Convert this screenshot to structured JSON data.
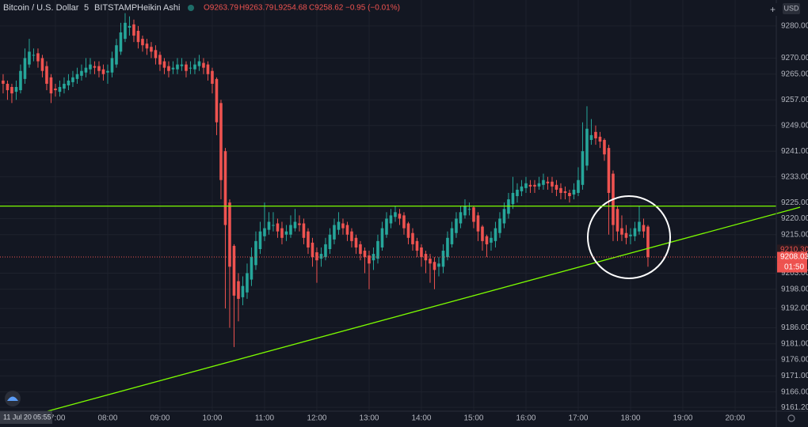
{
  "chart_data": {
    "type": "candlestick",
    "header": {
      "symbol": "Bitcoin / U.S. Dollar",
      "interval": "5",
      "exchange": "BITSTAMP",
      "style": "Heikin Ashi",
      "open": "O9263.79",
      "high": "H9263.79",
      "low": "L9254.68",
      "close": "C9258.62",
      "change": "−0.95 (−0.01%)"
    },
    "currency": "USD",
    "cursor_date": "11 Jul 20",
    "cursor_time": "05:55",
    "countdown": "01:50",
    "up_color": "#26a69a",
    "down_color": "#ef5350",
    "grid": true,
    "hline": 9223.9,
    "hline_color": "#7cfc00",
    "price_labels": [
      {
        "value": 9210.3,
        "label": "9210.30"
      },
      {
        "value": 9208.03,
        "label": "9208.03"
      }
    ],
    "xlim": [
      356.4,
      1247.3
    ],
    "xticks": [
      {
        "value": 420,
        "label": "07:00"
      },
      {
        "value": 480,
        "label": "08:00"
      },
      {
        "value": 540,
        "label": "09:00"
      },
      {
        "value": 600,
        "label": "10:00"
      },
      {
        "value": 660,
        "label": "11:00"
      },
      {
        "value": 720,
        "label": "12:00"
      },
      {
        "value": 780,
        "label": "13:00"
      },
      {
        "value": 840,
        "label": "14:00"
      },
      {
        "value": 900,
        "label": "15:00"
      },
      {
        "value": 960,
        "label": "16:00"
      },
      {
        "value": 1020,
        "label": "17:00"
      },
      {
        "value": 1080,
        "label": "18:00"
      },
      {
        "value": 1140,
        "label": "19:00"
      },
      {
        "value": 1200,
        "label": "20:00"
      }
    ],
    "ylim": [
      9160,
      9288.1
    ],
    "yticks": [
      {
        "value": 9280,
        "label": "9280.00"
      },
      {
        "value": 9270,
        "label": "9270.00"
      },
      {
        "value": 9265,
        "label": "9265.00"
      },
      {
        "value": 9257,
        "label": "9257.00"
      },
      {
        "value": 9249,
        "label": "9249.00"
      },
      {
        "value": 9241,
        "label": "9241.00"
      },
      {
        "value": 9233,
        "label": "9233.00"
      },
      {
        "value": 9225,
        "label": "9225.00"
      },
      {
        "value": 9220,
        "label": "9220.00"
      },
      {
        "value": 9215,
        "label": "9215.00"
      },
      {
        "value": 9203,
        "label": "9203.00"
      },
      {
        "value": 9198,
        "label": "9198.00"
      },
      {
        "value": 9192,
        "label": "9192.00"
      },
      {
        "value": 9186,
        "label": "9186.00"
      },
      {
        "value": 9181,
        "label": "9181.00"
      },
      {
        "value": 9176,
        "label": "9176.00"
      },
      {
        "value": 9171,
        "label": "9171.00"
      },
      {
        "value": 9166,
        "label": "9166.00"
      },
      {
        "value": 9161.2,
        "label": "9161.20"
      }
    ],
    "x": [
      360,
      365,
      370,
      375,
      380,
      385,
      390,
      395,
      400,
      405,
      410,
      415,
      420,
      425,
      430,
      435,
      440,
      445,
      450,
      455,
      460,
      465,
      470,
      475,
      480,
      485,
      490,
      495,
      500,
      505,
      510,
      515,
      520,
      525,
      530,
      535,
      540,
      545,
      550,
      555,
      560,
      565,
      570,
      575,
      580,
      585,
      590,
      595,
      600,
      605,
      610,
      615,
      620,
      625,
      630,
      635,
      640,
      645,
      650,
      655,
      660,
      665,
      670,
      675,
      680,
      685,
      690,
      695,
      700,
      705,
      710,
      715,
      720,
      725,
      730,
      735,
      740,
      745,
      750,
      755,
      760,
      765,
      770,
      775,
      780,
      785,
      790,
      795,
      800,
      805,
      810,
      815,
      820,
      825,
      830,
      835,
      840,
      845,
      850,
      855,
      860,
      865,
      870,
      875,
      880,
      885,
      890,
      895,
      900,
      905,
      910,
      915,
      920,
      925,
      930,
      935,
      940,
      945,
      950,
      955,
      960,
      965,
      970,
      975,
      980,
      985,
      990,
      995,
      1000,
      1005,
      1010,
      1015,
      1020,
      1025,
      1030,
      1035,
      1040,
      1045,
      1050,
      1055,
      1060,
      1065,
      1070,
      1075,
      1080,
      1085,
      1090,
      1095,
      1100
    ],
    "open": [
      9263,
      9262,
      9261,
      9259.5,
      9260,
      9263.5,
      9268,
      9271,
      9271.5,
      9270,
      9267.5,
      9264,
      9260.5,
      9259.5,
      9260.5,
      9261.5,
      9262.5,
      9263.5,
      9264.5,
      9265.5,
      9266.5,
      9267.5,
      9267.5,
      9266.5,
      9265.5,
      9265.5,
      9268,
      9272,
      9276,
      9279.5,
      9280.5,
      9278.5,
      9276,
      9274.5,
      9273.5,
      9272.5,
      9271,
      9269,
      9267.5,
      9266.5,
      9266.5,
      9267.5,
      9268,
      9267,
      9266.5,
      9267.5,
      9268.5,
      9268,
      9266,
      9263.5,
      9256,
      9241,
      9225,
      9211.5,
      9200.5,
      9195.5,
      9197,
      9201,
      9205.5,
      9210.5,
      9214.5,
      9216.5,
      9218,
      9218.5,
      9217,
      9215,
      9215,
      9217,
      9218.5,
      9218.5,
      9216,
      9212.5,
      9209.5,
      9207.5,
      9208,
      9210.5,
      9213.5,
      9216.5,
      9218.5,
      9218,
      9216,
      9214,
      9212,
      9210,
      9208.5,
      9207,
      9207.5,
      9211,
      9215,
      9218.5,
      9220.5,
      9221.5,
      9221,
      9218.5,
      9215.5,
      9213,
      9211,
      9209,
      9207.5,
      9206.5,
      9205,
      9205,
      9208,
      9212,
      9215.5,
      9218.5,
      9221,
      9223,
      9223.5,
      9221,
      9217.5,
      9214.5,
      9212.5,
      9213,
      9215.5,
      9218.5,
      9221.5,
      9224.5,
      9227,
      9228.5,
      9229.5,
      9230.5,
      9230.5,
      9230,
      9230.5,
      9231.5,
      9231.5,
      9230.5,
      9229.5,
      9228.5,
      9228,
      9227.5,
      9228,
      9230.5,
      9236.5,
      9244.5,
      9247,
      9245.5,
      9244.5,
      9242,
      9234,
      9223,
      9217,
      9215.5,
      9214.5,
      9214.5,
      9216,
      9218,
      9217.5
    ],
    "high": [
      9265,
      9263,
      9262,
      9263,
      9268,
      9273,
      9276,
      9273,
      9273,
      9271,
      9269,
      9265,
      9262,
      9263,
      9264,
      9265,
      9266,
      9267,
      9268,
      9270,
      9270,
      9269,
      9269,
      9268,
      9268,
      9272,
      9276,
      9281,
      9284,
      9283,
      9282,
      9280,
      9277,
      9276,
      9275,
      9274,
      9272,
      9270,
      9269,
      9269,
      9270,
      9270,
      9269,
      9269,
      9270,
      9271,
      9270,
      9269,
      9267,
      9264,
      9257,
      9242,
      9226,
      9212,
      9203,
      9202,
      9206,
      9211,
      9216,
      9219,
      9225,
      9222,
      9222,
      9220,
      9219,
      9218,
      9221,
      9223,
      9221,
      9220,
      9217,
      9214,
      9211,
      9211,
      9214,
      9217,
      9220,
      9222,
      9220,
      9219,
      9217,
      9215,
      9213,
      9211,
      9210,
      9211,
      9215,
      9219,
      9222,
      9223,
      9224,
      9223,
      9222,
      9219,
      9217,
      9214,
      9212,
      9210,
      9209,
      9208,
      9208,
      9212,
      9216,
      9219,
      9222,
      9224,
      9226,
      9225,
      9224,
      9222,
      9218,
      9215,
      9216,
      9219,
      9222,
      9225,
      9228,
      9233,
      9231,
      9232,
      9233,
      9232,
      9232,
      9233,
      9234,
      9233,
      9233,
      9232,
      9231,
      9230,
      9229,
      9231,
      9236,
      9250,
      9255,
      9251,
      9249,
      9247,
      9245,
      9243,
      9235,
      9224,
      9221,
      9218,
      9217,
      9219,
      9224,
      9220,
      9218
    ],
    "low": [
      9259,
      9257,
      9256,
      9257,
      9259,
      9262,
      9267,
      9269,
      9267,
      9264,
      9260,
      9256,
      9258,
      9258,
      9259,
      9260,
      9261,
      9262,
      9263,
      9264,
      9265,
      9265,
      9264,
      9263,
      9262,
      9264,
      9267,
      9271,
      9275,
      9277,
      9275,
      9273,
      9272,
      9271,
      9270,
      9268,
      9266,
      9265,
      9264,
      9265,
      9265,
      9266,
      9264,
      9265,
      9265,
      9266,
      9265,
      9263,
      9259,
      9246,
      9226,
      9192,
      9186,
      9180,
      9188,
      9193,
      9195,
      9199,
      9204,
      9209,
      9213,
      9215,
      9216,
      9214,
      9212,
      9213,
      9214,
      9216,
      9216,
      9212,
      9209,
      9205,
      9200,
      9205,
      9207,
      9209,
      9212,
      9215,
      9215,
      9213,
      9211,
      9209,
      9207,
      9203,
      9198,
      9204,
      9206,
      9210,
      9214,
      9217,
      9219,
      9218,
      9215,
      9212,
      9210,
      9208,
      9205,
      9203,
      9200,
      9198,
      9202,
      9203,
      9207,
      9211,
      9214,
      9217,
      9220,
      9221,
      9217,
      9213,
      9210,
      9208,
      9210,
      9211,
      9214,
      9217,
      9220,
      9223,
      9225,
      9227,
      9228,
      9228,
      9228,
      9229,
      9229,
      9229,
      9228,
      9227,
      9226,
      9226,
      9225,
      9226,
      9227,
      9229,
      9235,
      9243,
      9243,
      9242,
      9238,
      9215,
      9213,
      9213,
      9213,
      9212,
      9212,
      9213,
      9215,
      9214,
      9205
    ],
    "close": [
      9262,
      9260,
      9259,
      9261,
      9266,
      9270,
      9272,
      9271,
      9269,
      9266,
      9262,
      9259,
      9260,
      9261,
      9262,
      9263,
      9264,
      9265,
      9266,
      9267,
      9268,
      9267,
      9266,
      9265,
      9266,
      9270,
      9274,
      9278,
      9281,
      9280,
      9277,
      9275,
      9274,
      9273,
      9272,
      9270,
      9268,
      9267,
      9266,
      9267,
      9268,
      9268,
      9266,
      9267,
      9268,
      9269,
      9267,
      9265,
      9262,
      9250,
      9232,
      9218,
      9205,
      9196,
      9195,
      9199,
      9203,
      9208,
      9213,
      9216,
      9217,
      9219,
      9218,
      9216,
      9214,
      9216,
      9218,
      9219,
      9218,
      9214,
      9211,
      9208,
      9207,
      9209,
      9212,
      9215,
      9218,
      9219,
      9217,
      9215,
      9213,
      9211,
      9209,
      9208,
      9206,
      9209,
      9213,
      9217,
      9220,
      9221,
      9222,
      9220,
      9217,
      9214,
      9212,
      9210,
      9208,
      9207,
      9206,
      9204,
      9206,
      9210,
      9214,
      9217,
      9220,
      9222,
      9224,
      9223,
      9219,
      9216,
      9213,
      9212,
      9214,
      9217,
      9220,
      9223,
      9226,
      9228,
      9229,
      9230,
      9231,
      9230,
      9230,
      9231,
      9232,
      9231,
      9230,
      9229,
      9228,
      9228,
      9227,
      9229,
      9232,
      9241,
      9248,
      9246,
      9245,
      9244,
      9240,
      9228,
      9218,
      9216,
      9215,
      9214,
      9215,
      9217,
      9219,
      9216,
      9208.03
    ]
  }
}
